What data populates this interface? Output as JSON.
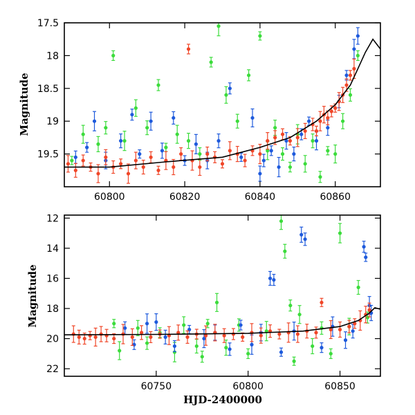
{
  "chart_data": [
    {
      "id": "top",
      "type": "scatter",
      "title": "",
      "xlabel": "",
      "ylabel": "Magnitude",
      "xlim": [
        60788,
        60872
      ],
      "ylim": [
        20.0,
        17.5
      ],
      "y_inverted": true,
      "xticks": [
        60800,
        60820,
        60840,
        60860
      ],
      "xtick_labels": [
        "60800",
        "60820",
        "60840",
        "60860"
      ],
      "yticks": [
        17.5,
        18,
        18.5,
        19,
        19.5
      ],
      "ytick_labels": [
        "17.5",
        "18",
        "18.5",
        "19",
        "19.5"
      ],
      "grid": false,
      "legend": "none",
      "series": [
        {
          "color": "#3cdc3c",
          "points": [
            [
              60790,
              19.6
            ],
            [
              60793,
              19.2
            ],
            [
              60797,
              19.35
            ],
            [
              60799,
              19.1
            ],
            [
              60801,
              18.0
            ],
            [
              60804,
              19.3
            ],
            [
              60807,
              18.8
            ],
            [
              60810,
              19.1
            ],
            [
              60813,
              18.45
            ],
            [
              60815,
              19.4
            ],
            [
              60818,
              19.2
            ],
            [
              60821,
              19.3
            ],
            [
              60824,
              19.5
            ],
            [
              60827,
              18.1
            ],
            [
              60829,
              17.55
            ],
            [
              60831,
              18.6
            ],
            [
              60834,
              19.0
            ],
            [
              60837,
              18.3
            ],
            [
              60840,
              17.7
            ],
            [
              60842,
              19.45
            ],
            [
              60844,
              19.1
            ],
            [
              60846,
              19.5
            ],
            [
              60848,
              19.7
            ],
            [
              60850,
              19.2
            ],
            [
              60852,
              19.65
            ],
            [
              60854,
              19.3
            ],
            [
              60856,
              19.85
            ],
            [
              60858,
              19.45
            ],
            [
              60860,
              19.5
            ],
            [
              60862,
              19.0
            ],
            [
              60864,
              18.6
            ],
            [
              60866,
              18.0
            ]
          ]
        },
        {
          "color": "#1e5adc",
          "points": [
            [
              60791,
              19.55
            ],
            [
              60794,
              19.4
            ],
            [
              60796,
              19.0
            ],
            [
              60799,
              19.6
            ],
            [
              60803,
              19.3
            ],
            [
              60806,
              18.9
            ],
            [
              60808,
              19.5
            ],
            [
              60811,
              19.0
            ],
            [
              60814,
              19.45
            ],
            [
              60817,
              18.95
            ],
            [
              60820,
              19.6
            ],
            [
              60823,
              19.35
            ],
            [
              60826,
              19.6
            ],
            [
              60829,
              19.3
            ],
            [
              60832,
              18.5
            ],
            [
              60835,
              19.55
            ],
            [
              60838,
              18.95
            ],
            [
              60840,
              19.8
            ],
            [
              60841,
              19.6
            ],
            [
              60843,
              19.45
            ],
            [
              60845,
              19.7
            ],
            [
              60847,
              19.3
            ],
            [
              60849,
              19.5
            ],
            [
              60851,
              19.2
            ],
            [
              60853,
              19.0
            ],
            [
              60855,
              19.3
            ],
            [
              60858,
              19.1
            ],
            [
              60861,
              18.7
            ],
            [
              60863,
              18.3
            ],
            [
              60865,
              17.9
            ],
            [
              60866,
              17.7
            ]
          ]
        },
        {
          "color": "#f04628",
          "points": [
            [
              60789,
              19.65
            ],
            [
              60791,
              19.75
            ],
            [
              60793,
              19.6
            ],
            [
              60795,
              19.7
            ],
            [
              60797,
              19.8
            ],
            [
              60799,
              19.55
            ],
            [
              60801,
              19.7
            ],
            [
              60803,
              19.65
            ],
            [
              60805,
              19.8
            ],
            [
              60807,
              19.6
            ],
            [
              60809,
              19.7
            ],
            [
              60811,
              19.55
            ],
            [
              60813,
              19.75
            ],
            [
              60815,
              19.6
            ],
            [
              60817,
              19.7
            ],
            [
              60819,
              19.5
            ],
            [
              60821,
              17.9
            ],
            [
              60822,
              19.6
            ],
            [
              60824,
              19.7
            ],
            [
              60826,
              19.5
            ],
            [
              60828,
              19.55
            ],
            [
              60830,
              19.65
            ],
            [
              60832,
              19.45
            ],
            [
              60834,
              19.5
            ],
            [
              60836,
              19.6
            ],
            [
              60838,
              19.45
            ],
            [
              60840,
              19.5
            ],
            [
              60842,
              19.3
            ],
            [
              60844,
              19.25
            ],
            [
              60846,
              19.2
            ],
            [
              60848,
              19.3
            ],
            [
              60850,
              19.25
            ],
            [
              60852,
              19.15
            ],
            [
              60854,
              19.05
            ],
            [
              60855,
              19.15
            ],
            [
              60856,
              19.0
            ],
            [
              60857,
              18.9
            ],
            [
              60858,
              18.95
            ],
            [
              60859,
              18.85
            ],
            [
              60860,
              18.8
            ],
            [
              60861,
              18.7
            ],
            [
              60862,
              18.6
            ],
            [
              60863,
              18.45
            ],
            [
              60864,
              18.3
            ],
            [
              60865,
              18.2
            ]
          ]
        }
      ],
      "model": [
        [
          60788,
          19.7
        ],
        [
          60800,
          19.7
        ],
        [
          60815,
          19.62
        ],
        [
          60830,
          19.55
        ],
        [
          60840,
          19.4
        ],
        [
          60848,
          19.25
        ],
        [
          60855,
          19.0
        ],
        [
          60860,
          18.75
        ],
        [
          60864,
          18.45
        ],
        [
          60866,
          18.2
        ],
        [
          60868,
          17.95
        ],
        [
          60870,
          17.75
        ],
        [
          60872,
          17.9
        ]
      ]
    },
    {
      "id": "bottom",
      "type": "scatter",
      "title": "",
      "xlabel": "HJD-2400000",
      "ylabel": "Magnitude",
      "xlim": [
        60700,
        60872
      ],
      "ylim": [
        22.5,
        11.8
      ],
      "y_inverted": true,
      "xticks": [
        60750,
        60800,
        60850
      ],
      "xtick_labels": [
        "60750",
        "60800",
        "60850"
      ],
      "yticks": [
        12,
        14,
        16,
        18,
        20,
        22
      ],
      "ytick_labels": [
        "12",
        "14",
        "16",
        "18",
        "20",
        "22"
      ],
      "grid": false,
      "legend": "none",
      "series": [
        {
          "color": "#3cdc3c",
          "points": [
            [
              60727,
              19.0
            ],
            [
              60730,
              20.8
            ],
            [
              60740,
              19.3
            ],
            [
              60745,
              20.3
            ],
            [
              60752,
              19.6
            ],
            [
              60760,
              20.9
            ],
            [
              60765,
              19.1
            ],
            [
              60772,
              20.5
            ],
            [
              60775,
              21.2
            ],
            [
              60778,
              19.0
            ],
            [
              60783,
              17.6
            ],
            [
              60788,
              20.6
            ],
            [
              60795,
              19.1
            ],
            [
              60800,
              21.0
            ],
            [
              60810,
              19.5
            ],
            [
              60818,
              12.2
            ],
            [
              60820,
              14.2
            ],
            [
              60823,
              17.8
            ],
            [
              60825,
              21.5
            ],
            [
              60828,
              18.4
            ],
            [
              60835,
              20.5
            ],
            [
              60840,
              19.3
            ],
            [
              60845,
              21.0
            ],
            [
              60850,
              13.0
            ],
            [
              60855,
              19.2
            ],
            [
              60860,
              16.6
            ],
            [
              60865,
              18.6
            ]
          ]
        },
        {
          "color": "#1e5adc",
          "points": [
            [
              60733,
              19.3
            ],
            [
              60738,
              20.4
            ],
            [
              60745,
              19.0
            ],
            [
              60750,
              18.9
            ],
            [
              60755,
              19.9
            ],
            [
              60760,
              20.5
            ],
            [
              60768,
              19.4
            ],
            [
              60776,
              20.0
            ],
            [
              60782,
              19.6
            ],
            [
              60790,
              20.7
            ],
            [
              60796,
              19.1
            ],
            [
              60802,
              20.4
            ],
            [
              60807,
              19.6
            ],
            [
              60812,
              16.0
            ],
            [
              60814,
              16.1
            ],
            [
              60818,
              20.9
            ],
            [
              60825,
              19.5
            ],
            [
              60829,
              13.1
            ],
            [
              60831,
              13.4
            ],
            [
              60840,
              20.6
            ],
            [
              60846,
              19.2
            ],
            [
              60853,
              20.1
            ],
            [
              60857,
              19.5
            ],
            [
              60863,
              13.9
            ],
            [
              60864,
              14.6
            ],
            [
              60866,
              17.8
            ],
            [
              60867,
              18.3
            ]
          ]
        },
        {
          "color": "#f04628",
          "points": [
            [
              60705,
              19.7
            ],
            [
              60708,
              19.9
            ],
            [
              60711,
              20.0
            ],
            [
              60714,
              19.8
            ],
            [
              60717,
              19.9
            ],
            [
              60720,
              19.7
            ],
            [
              60723,
              19.8
            ],
            [
              60727,
              20.0
            ],
            [
              60732,
              19.7
            ],
            [
              60737,
              19.9
            ],
            [
              60742,
              19.6
            ],
            [
              60747,
              19.9
            ],
            [
              60752,
              19.7
            ],
            [
              60757,
              19.8
            ],
            [
              60762,
              19.6
            ],
            [
              60767,
              19.9
            ],
            [
              60772,
              19.7
            ],
            [
              60777,
              19.8
            ],
            [
              60782,
              19.6
            ],
            [
              60787,
              19.8
            ],
            [
              60792,
              19.7
            ],
            [
              60797,
              19.9
            ],
            [
              60802,
              19.6
            ],
            [
              60807,
              19.8
            ],
            [
              60812,
              19.5
            ],
            [
              60817,
              19.7
            ],
            [
              60822,
              19.6
            ],
            [
              60827,
              19.7
            ],
            [
              60832,
              19.5
            ],
            [
              60837,
              19.6
            ],
            [
              60840,
              17.6
            ],
            [
              60845,
              19.4
            ],
            [
              60850,
              19.4
            ],
            [
              60855,
              19.2
            ],
            [
              60858,
              19.0
            ],
            [
              60861,
              18.8
            ],
            [
              60864,
              18.4
            ],
            [
              60866,
              18.1
            ]
          ]
        }
      ],
      "model": [
        [
          60700,
          19.75
        ],
        [
          60750,
          19.72
        ],
        [
          60800,
          19.65
        ],
        [
          60830,
          19.5
        ],
        [
          60850,
          19.2
        ],
        [
          60860,
          18.8
        ],
        [
          60866,
          18.3
        ],
        [
          60869,
          17.95
        ],
        [
          60872,
          18.05
        ]
      ]
    }
  ]
}
